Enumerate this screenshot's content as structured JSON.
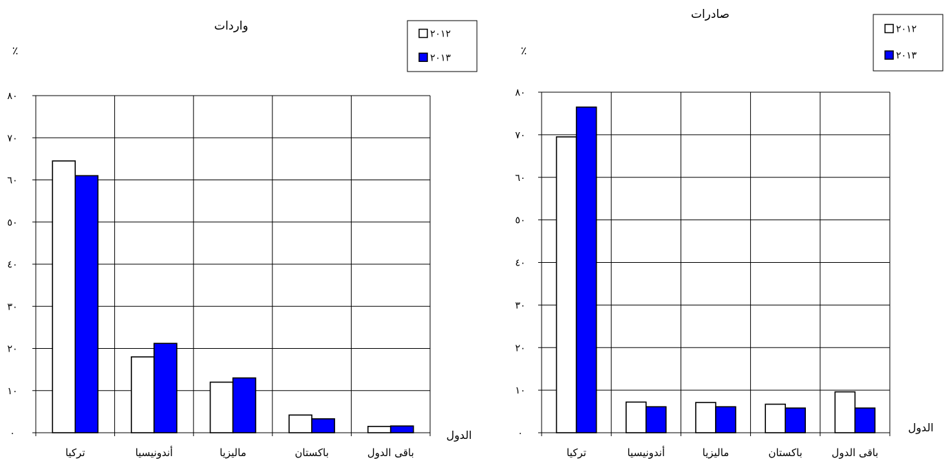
{
  "chart_data": [
    {
      "type": "bar",
      "title": "واردات",
      "ylabel": "٪",
      "xlabel": "الدول",
      "categories": [
        "تركيا",
        "أندونيسيا",
        "ماليزيا",
        "باكستان",
        "باقى الدول"
      ],
      "series": [
        {
          "name": "٢٠١٢",
          "color": "#ffffff",
          "values": [
            64.5,
            18,
            12,
            4.2,
            1.5
          ]
        },
        {
          "name": "٢٠١٣",
          "color": "#0000ff",
          "values": [
            61,
            21.2,
            13,
            3.3,
            1.6
          ]
        }
      ],
      "ylim": [
        0,
        80
      ],
      "yticks": [
        0,
        10,
        20,
        30,
        40,
        50,
        60,
        70,
        80
      ],
      "ytick_labels": [
        "٠",
        "١٠",
        "٢٠",
        "٣٠",
        "٤٠",
        "٥٠",
        "٦٠",
        "٧٠",
        "٨٠"
      ],
      "grid": true,
      "legend_position": "top-right"
    },
    {
      "type": "bar",
      "title": "صادرات",
      "ylabel": "٪",
      "xlabel": "الدول",
      "categories": [
        "تركيا",
        "أندونيسيا",
        "ماليزيا",
        "باكستان",
        "باقى الدول"
      ],
      "series": [
        {
          "name": "٢٠١٢",
          "color": "#ffffff",
          "values": [
            69.5,
            7.2,
            7.1,
            6.7,
            9.6
          ]
        },
        {
          "name": "٢٠١٣",
          "color": "#0000ff",
          "values": [
            76.5,
            6.1,
            6.1,
            5.8,
            5.8
          ]
        }
      ],
      "ylim": [
        0,
        80
      ],
      "yticks": [
        0,
        10,
        20,
        30,
        40,
        50,
        60,
        70,
        80
      ],
      "ytick_labels": [
        "٠",
        "١٠",
        "٢٠",
        "٣٠",
        "٤٠",
        "٥٠",
        "٦٠",
        "٧٠",
        "٨٠"
      ],
      "grid": true,
      "legend_position": "top-right"
    }
  ]
}
